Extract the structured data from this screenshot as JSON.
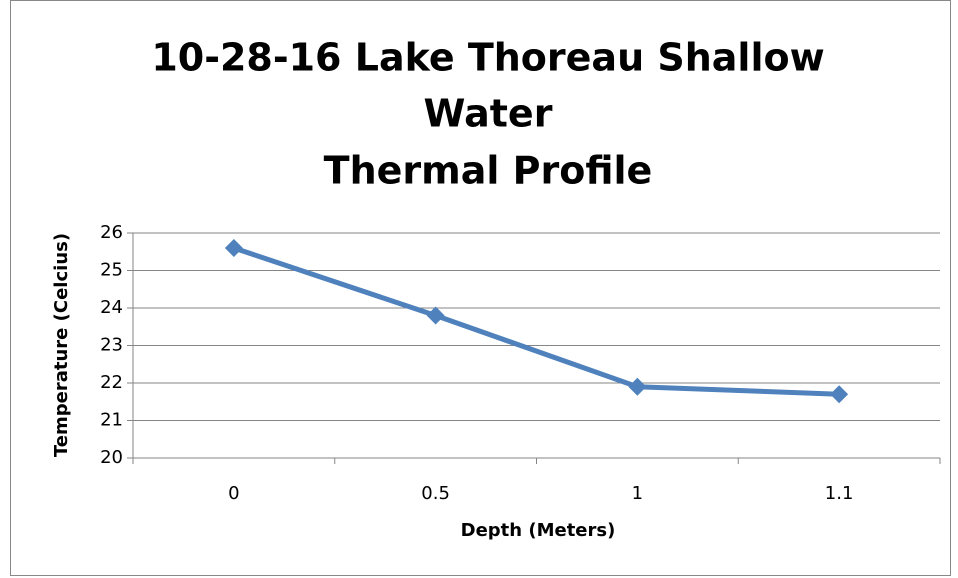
{
  "chart_data": {
    "type": "line",
    "title": [
      "10-28-16 Lake Thoreau Shallow",
      "Water",
      "Thermal Profile"
    ],
    "xlabel": "Depth (Meters)",
    "ylabel": "Temperature (Celcius)",
    "categories": [
      "0",
      "0.5",
      "1",
      "1.1"
    ],
    "series": [
      {
        "color": "#4f81bd",
        "values": [
          25.6,
          23.8,
          21.9,
          21.7
        ]
      }
    ],
    "ylim": [
      20,
      26
    ],
    "yticks": [
      20,
      21,
      22,
      23,
      24,
      25,
      26
    ],
    "grid": true
  }
}
